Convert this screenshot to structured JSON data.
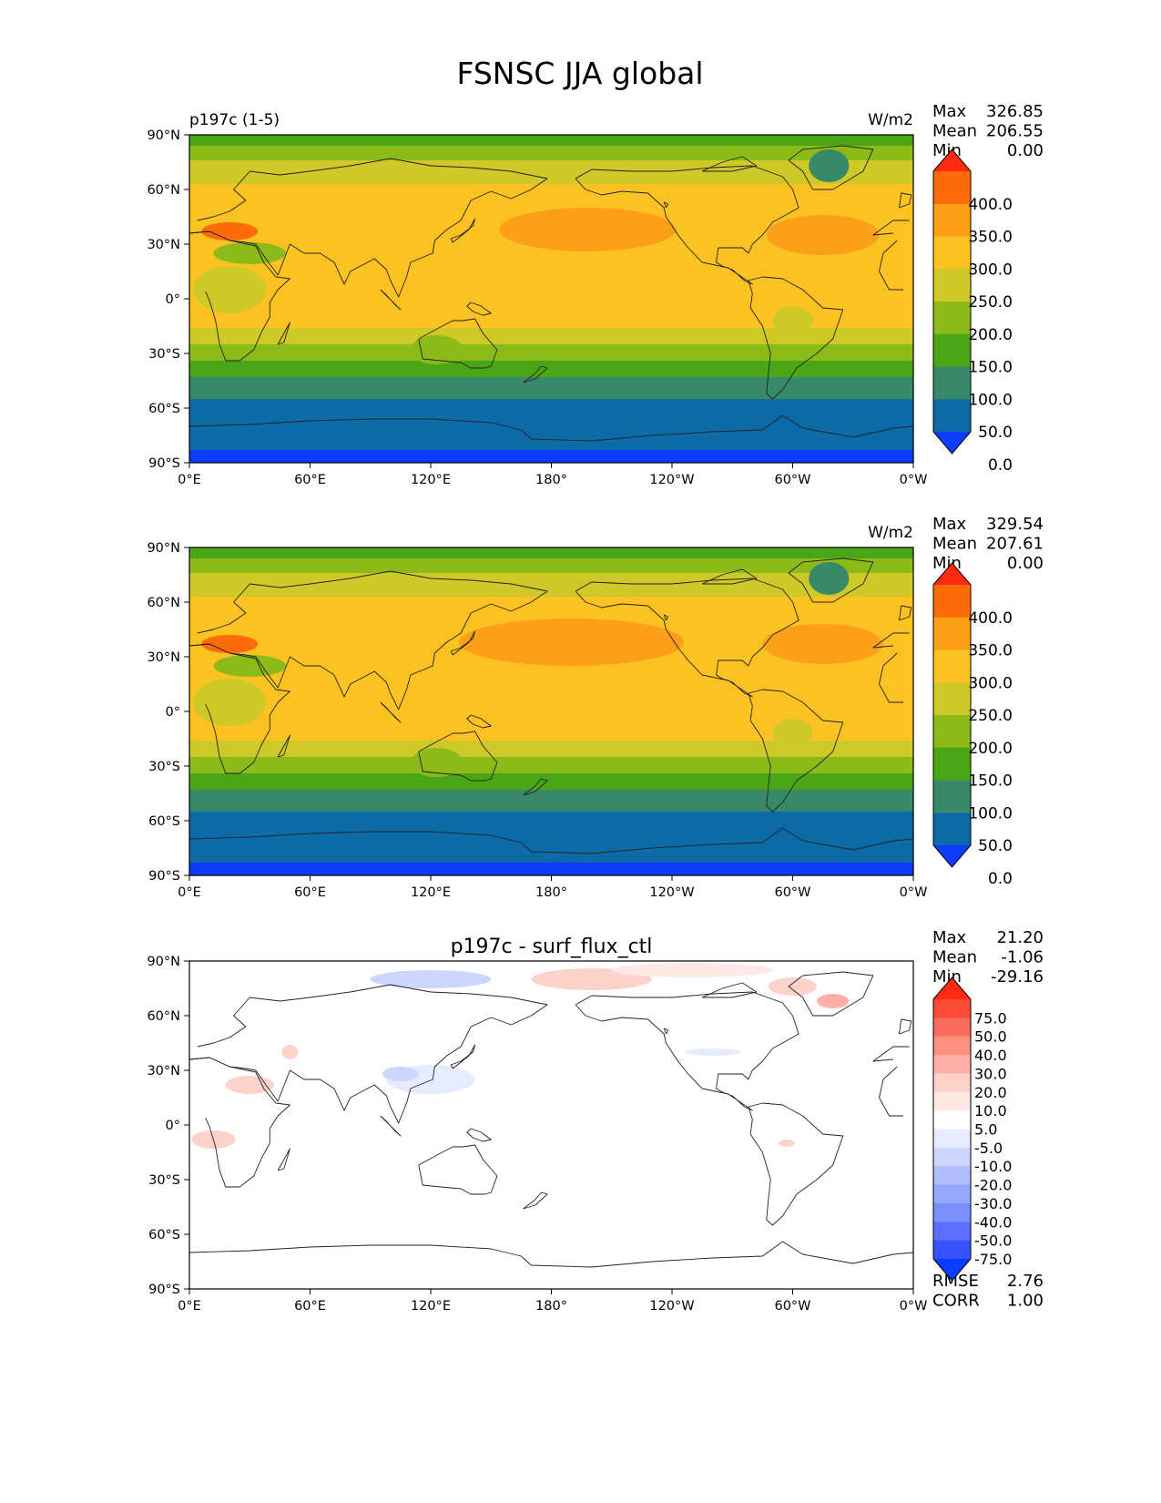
{
  "figure_title": "FSNSC JJA global",
  "chart_data": [
    {
      "type": "heatmap",
      "title_left": "p197c (1-5)",
      "title_center": "",
      "units": "W/m2",
      "stats": {
        "max_label": "Max",
        "max": "326.85",
        "mean_label": "Mean",
        "mean": "206.55",
        "min_label": "Min",
        "min": "0.00"
      },
      "x_ticks": [
        "0°E",
        "60°E",
        "120°E",
        "180°",
        "120°W",
        "60°W",
        "0°W"
      ],
      "y_ticks": [
        "90°N",
        "60°N",
        "30°N",
        "0°",
        "30°S",
        "60°S",
        "90°S"
      ],
      "xlim": [
        0,
        360
      ],
      "ylim": [
        -90,
        90
      ],
      "colorbar": {
        "labels": [
          "400.0",
          "350.0",
          "300.0",
          "250.0",
          "200.0",
          "150.0",
          "100.0",
          "50.0",
          "0.0"
        ],
        "colors": [
          "#ff2a10",
          "#ff6a0a",
          "#fca01a",
          "#fcc222",
          "#cec828",
          "#8cba18",
          "#4aa616",
          "#38886a",
          "#0c6aa6",
          "#0b3cff"
        ]
      },
      "zonal_bands": [
        {
          "lat": [
            -90,
            -83
          ],
          "color": "#0b3cff"
        },
        {
          "lat": [
            -83,
            -55
          ],
          "color": "#0c6aa6"
        },
        {
          "lat": [
            -55,
            -43
          ],
          "color": "#38886a"
        },
        {
          "lat": [
            -43,
            -34
          ],
          "color": "#4aa616"
        },
        {
          "lat": [
            -34,
            -25
          ],
          "color": "#8cba18"
        },
        {
          "lat": [
            -25,
            -16
          ],
          "color": "#cec828"
        },
        {
          "lat": [
            -16,
            54
          ],
          "color": "#fcc222"
        },
        {
          "lat": [
            54,
            63
          ],
          "color": "#fcc222"
        },
        {
          "lat": [
            63,
            76
          ],
          "color": "#cec828"
        },
        {
          "lat": [
            76,
            84
          ],
          "color": "#8cba18"
        },
        {
          "lat": [
            84,
            90
          ],
          "color": "#4aa616"
        }
      ],
      "features": [
        {
          "lon": 198,
          "lat": 38,
          "rlon": 44,
          "rlat": 12,
          "color": "#fca01a"
        },
        {
          "lon": 315,
          "lat": 35,
          "rlon": 28,
          "rlat": 11,
          "color": "#fca01a"
        },
        {
          "lon": 20,
          "lat": 37,
          "rlon": 14,
          "rlat": 5,
          "color": "#ff6a0a"
        },
        {
          "lon": 318,
          "lat": 73,
          "rlon": 10,
          "rlat": 9,
          "color": "#38886a"
        },
        {
          "lon": 20,
          "lat": 5,
          "rlon": 18,
          "rlat": 13,
          "color": "#cec828"
        },
        {
          "lon": 30,
          "lat": 25,
          "rlon": 18,
          "rlat": 6,
          "color": "#8cba18"
        },
        {
          "lon": 123,
          "lat": -28,
          "rlon": 13,
          "rlat": 8,
          "color": "#8cba18"
        },
        {
          "lon": 300,
          "lat": -12,
          "rlon": 10,
          "rlat": 8,
          "color": "#cec828"
        }
      ]
    },
    {
      "type": "heatmap",
      "title_left": "",
      "title_center": "",
      "units": "W/m2",
      "stats": {
        "max_label": "Max",
        "max": "329.54",
        "mean_label": "Mean",
        "mean": "207.61",
        "min_label": "Min",
        "min": "0.00"
      },
      "x_ticks": [
        "0°E",
        "60°E",
        "120°E",
        "180°",
        "120°W",
        "60°W",
        "0°W"
      ],
      "y_ticks": [
        "90°N",
        "60°N",
        "30°N",
        "0°",
        "30°S",
        "60°S",
        "90°S"
      ],
      "xlim": [
        0,
        360
      ],
      "ylim": [
        -90,
        90
      ],
      "colorbar": {
        "labels": [
          "400.0",
          "350.0",
          "300.0",
          "250.0",
          "200.0",
          "150.0",
          "100.0",
          "50.0",
          "0.0"
        ],
        "colors": [
          "#ff2a10",
          "#ff6a0a",
          "#fca01a",
          "#fcc222",
          "#cec828",
          "#8cba18",
          "#4aa616",
          "#38886a",
          "#0c6aa6",
          "#0b3cff"
        ]
      },
      "zonal_bands": [
        {
          "lat": [
            -90,
            -83
          ],
          "color": "#0b3cff"
        },
        {
          "lat": [
            -83,
            -55
          ],
          "color": "#0c6aa6"
        },
        {
          "lat": [
            -55,
            -43
          ],
          "color": "#38886a"
        },
        {
          "lat": [
            -43,
            -34
          ],
          "color": "#4aa616"
        },
        {
          "lat": [
            -34,
            -25
          ],
          "color": "#8cba18"
        },
        {
          "lat": [
            -25,
            -16
          ],
          "color": "#cec828"
        },
        {
          "lat": [
            -16,
            54
          ],
          "color": "#fcc222"
        },
        {
          "lat": [
            54,
            63
          ],
          "color": "#fcc222"
        },
        {
          "lat": [
            63,
            76
          ],
          "color": "#cec828"
        },
        {
          "lat": [
            76,
            84
          ],
          "color": "#8cba18"
        },
        {
          "lat": [
            84,
            90
          ],
          "color": "#4aa616"
        }
      ],
      "features": [
        {
          "lon": 190,
          "lat": 38,
          "rlon": 56,
          "rlat": 13,
          "color": "#fca01a"
        },
        {
          "lon": 315,
          "lat": 37,
          "rlon": 30,
          "rlat": 11,
          "color": "#fca01a"
        },
        {
          "lon": 20,
          "lat": 37,
          "rlon": 14,
          "rlat": 5,
          "color": "#ff6a0a"
        },
        {
          "lon": 318,
          "lat": 73,
          "rlon": 10,
          "rlat": 9,
          "color": "#38886a"
        },
        {
          "lon": 20,
          "lat": 5,
          "rlon": 18,
          "rlat": 13,
          "color": "#cec828"
        },
        {
          "lon": 30,
          "lat": 25,
          "rlon": 18,
          "rlat": 6,
          "color": "#8cba18"
        },
        {
          "lon": 123,
          "lat": -28,
          "rlon": 13,
          "rlat": 8,
          "color": "#8cba18"
        },
        {
          "lon": 300,
          "lat": -12,
          "rlon": 10,
          "rlat": 8,
          "color": "#cec828"
        }
      ]
    },
    {
      "type": "heatmap",
      "title_left": "",
      "title_center": "p197c - surf_flux_ctl",
      "units": "",
      "stats": {
        "max_label": "Max",
        "max": "21.20",
        "mean_label": "Mean",
        "mean": "-1.06",
        "min_label": "Min",
        "min": "-29.16"
      },
      "metrics": {
        "rmse_label": "RMSE",
        "rmse": "2.76",
        "corr_label": "CORR",
        "corr": "1.00"
      },
      "x_ticks": [
        "0°E",
        "60°E",
        "120°E",
        "180°",
        "120°W",
        "60°W",
        "0°W"
      ],
      "y_ticks": [
        "90°N",
        "60°N",
        "30°N",
        "0°",
        "30°S",
        "60°S",
        "90°S"
      ],
      "xlim": [
        0,
        360
      ],
      "ylim": [
        -90,
        90
      ],
      "colorbar": {
        "labels": [
          "75.0",
          "50.0",
          "40.0",
          "30.0",
          "20.0",
          "10.0",
          "5.0",
          "-5.0",
          "-10.0",
          "-20.0",
          "-30.0",
          "-40.0",
          "-50.0",
          "-75.0"
        ],
        "colors": [
          "#ff2a10",
          "#fb4a36",
          "#f96b5a",
          "#fb8f80",
          "#fdb1a6",
          "#fdd2cb",
          "#fee9e6",
          "#ffffff",
          "#e6ebff",
          "#ccd6ff",
          "#b1beff",
          "#97a8ff",
          "#7c8fff",
          "#5b70ff",
          "#3752ff",
          "#0b3cff"
        ]
      },
      "zonal_bands": [],
      "features": [
        {
          "lon": 200,
          "lat": 80,
          "rlon": 30,
          "rlat": 6,
          "color": "#fdd2cb"
        },
        {
          "lon": 250,
          "lat": 85,
          "rlon": 40,
          "rlat": 4,
          "color": "#fee9e6"
        },
        {
          "lon": 300,
          "lat": 76,
          "rlon": 12,
          "rlat": 5,
          "color": "#fdd2cb"
        },
        {
          "lon": 120,
          "lat": 80,
          "rlon": 30,
          "rlat": 5,
          "color": "#ccd6ff"
        },
        {
          "lon": 320,
          "lat": 68,
          "rlon": 8,
          "rlat": 4,
          "color": "#fdb1a6"
        },
        {
          "lon": 120,
          "lat": 25,
          "rlon": 22,
          "rlat": 8,
          "color": "#e6ebff"
        },
        {
          "lon": 105,
          "lat": 28,
          "rlon": 9,
          "rlat": 4,
          "color": "#ccd6ff"
        },
        {
          "lon": 30,
          "lat": 22,
          "rlon": 12,
          "rlat": 5,
          "color": "#fdd2cb"
        },
        {
          "lon": 12,
          "lat": -8,
          "rlon": 11,
          "rlat": 5,
          "color": "#fdd2cb"
        },
        {
          "lon": 297,
          "lat": -10,
          "rlon": 4,
          "rlat": 2,
          "color": "#fdd2cb"
        },
        {
          "lon": 260,
          "lat": 40,
          "rlon": 14,
          "rlat": 2,
          "color": "#e6ebff"
        },
        {
          "lon": 50,
          "lat": 40,
          "rlon": 4,
          "rlat": 4,
          "color": "#fdd2cb"
        }
      ]
    }
  ]
}
